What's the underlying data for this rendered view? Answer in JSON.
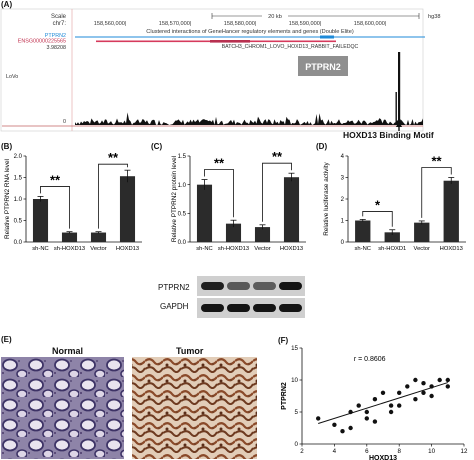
{
  "panels": {
    "A": "(A)",
    "B": "(B)",
    "C": "(C)",
    "D": "(D)",
    "E": "(E)",
    "F": "(F)"
  },
  "browser": {
    "scale_label": "Scale",
    "chr_label": "chr7:",
    "scale_bar": "20 kb",
    "assembly": "hg38",
    "positions": [
      "158,560,000|",
      "158,570,000|",
      "158,580,000|",
      "158,590,000|",
      "158,600,000|"
    ],
    "track_desc": "Clustered interactions of GeneHancer regulatory elements and genes (Double Elite)",
    "gene_label": "PTPRN2",
    "enh_label": "ENSG00000225565",
    "batch_label": "BATCH3_CHROM1_LOVO_HOXD13_RABBIT_FAILEDQC",
    "track_max": "3.98208",
    "cell_line": "LoVo",
    "track_min": "0",
    "box_label": "PTPRN2",
    "motif_label": "HOXD13  Binding  Motif",
    "colors": {
      "gene": "#1e8ad8",
      "enh": "#d63a5c",
      "box": "#8f8f8f"
    }
  },
  "chart_data": [
    {
      "id": "B",
      "type": "bar",
      "categories": [
        "sh-NC",
        "sh-HOXD13",
        "Vector",
        "HOXD13"
      ],
      "values": [
        1.0,
        0.22,
        0.22,
        1.53
      ],
      "errors": [
        0.06,
        0.02,
        0.02,
        0.14
      ],
      "ylabel": "Relative PTPRN2 RNA level",
      "ylim": [
        0,
        2.0
      ],
      "yticks": [
        "0.0",
        "0.5",
        "1.0",
        "1.5",
        "2.0"
      ],
      "sig": [
        "**",
        "**"
      ]
    },
    {
      "id": "C",
      "type": "bar",
      "categories": [
        "sh-NC",
        "sh-HOXD13",
        "Vector",
        "HOXD13"
      ],
      "values": [
        1.0,
        0.32,
        0.26,
        1.13
      ],
      "errors": [
        0.09,
        0.06,
        0.04,
        0.07
      ],
      "ylabel": "Relative PTPRN2 protein level",
      "ylim": [
        0,
        1.5
      ],
      "yticks": [
        "0.0",
        "0.5",
        "1.0",
        "1.5"
      ],
      "sig": [
        "**",
        "**"
      ]
    },
    {
      "id": "D",
      "type": "bar",
      "categories": [
        "sh-NC",
        "sh-HOXD1",
        "Vector",
        "HOXD13"
      ],
      "values": [
        1.0,
        0.45,
        0.9,
        2.85
      ],
      "errors": [
        0.05,
        0.12,
        0.08,
        0.15
      ],
      "ylabel": "Relative luciferase activity",
      "ylim": [
        0,
        4
      ],
      "yticks": [
        "0",
        "1",
        "2",
        "3",
        "4"
      ],
      "sig": [
        "*",
        "**"
      ]
    },
    {
      "id": "F",
      "type": "scatter",
      "xlabel": "HOXD13",
      "ylabel": "PTPRN2",
      "xlim": [
        2,
        12
      ],
      "ylim": [
        0,
        15
      ],
      "xticks": [
        "2",
        "4",
        "6",
        "8",
        "10",
        "12"
      ],
      "yticks": [
        "0",
        "5",
        "10",
        "15"
      ],
      "annotation": "r = 0.8606",
      "x": [
        3,
        4,
        4.5,
        5,
        5.5,
        6,
        6.5,
        7,
        7.5,
        8,
        8.5,
        9,
        9.5,
        10,
        10.5,
        11,
        5,
        6,
        7.5,
        8,
        9,
        10,
        6.5,
        9.5,
        11
      ],
      "y": [
        4,
        3,
        2,
        5,
        6,
        5,
        7,
        8,
        6,
        8,
        9,
        10,
        8,
        9,
        10,
        9,
        2.5,
        4,
        5,
        6,
        7,
        7.5,
        3.5,
        9.5,
        10
      ],
      "fit": {
        "x": [
          3,
          11
        ],
        "y": [
          3.2,
          9.6
        ]
      }
    }
  ],
  "blot": {
    "row1": "PTPRN2",
    "row2": "GAPDH",
    "row1_intensity": [
      0.9,
      0.45,
      0.4,
      1.0
    ],
    "row2_intensity": [
      1.0,
      1.0,
      1.0,
      1.0
    ]
  },
  "histology": {
    "left": "Normal",
    "right": "Tumor"
  }
}
